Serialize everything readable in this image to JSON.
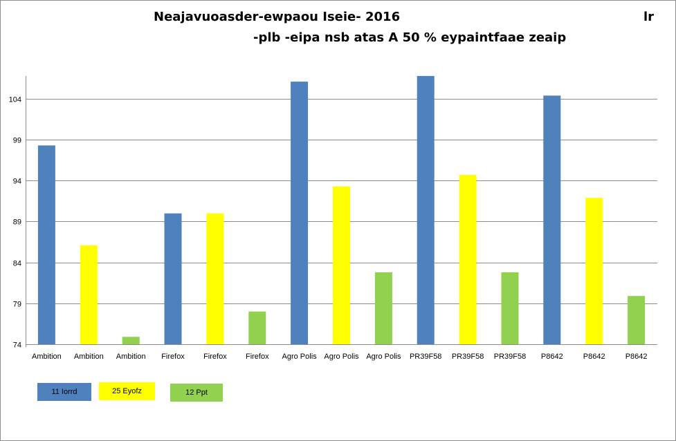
{
  "titles": {
    "main": "Neajavuoasder-ewpaou Iseie- 2016",
    "sub": "-plb -eipa nsb atas A 50 % eypaintfaae zeaip",
    "corner": "lr"
  },
  "colors": {
    "series1": "#4f81bd",
    "series2": "#ffff00",
    "series3": "#92d050",
    "gridline": "#8c8c8c",
    "axis": "#8c8c8c"
  },
  "chart_data": {
    "type": "bar",
    "title": "Neajavuoasder-ewpaou Iseie- 2016",
    "subtitle": "-plb -eipa nsb atas A 50 % eypaintfaae zeaip",
    "categories": [
      "Ambition",
      "Ambition",
      "Ambition",
      "Firefox",
      "Firefox",
      "Firefox",
      "Agro Polis",
      "Agro Polis",
      "Agro Polis",
      "PR39F58",
      "PR39F58",
      "PR39F58",
      "P8642",
      "P8642",
      "P8642"
    ],
    "bar_series": [
      0,
      1,
      2,
      0,
      1,
      2,
      0,
      1,
      2,
      0,
      1,
      2,
      0,
      1,
      2
    ],
    "values": [
      98.3,
      86.1,
      74.9,
      90.0,
      90.0,
      78.0,
      106.1,
      93.3,
      82.8,
      106.8,
      94.7,
      82.8,
      104.4,
      91.9,
      79.9
    ],
    "series": [
      {
        "name": "11 Iorrd"
      },
      {
        "name": "25 Eyofz"
      },
      {
        "name": "12 Ppt"
      }
    ],
    "yticks": [
      74,
      79,
      84,
      89,
      94,
      99,
      104
    ],
    "ylim": [
      74,
      108.9
    ],
    "grid": true,
    "legend_position": "bottom-left"
  },
  "legend": [
    {
      "label": "11 Iorrd"
    },
    {
      "label": "25 Eyofz"
    },
    {
      "label": "12 Ppt"
    }
  ]
}
